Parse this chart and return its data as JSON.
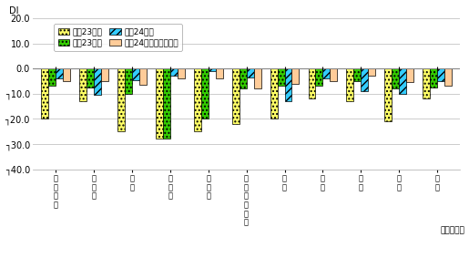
{
  "categories": [
    "全\n国\n平\n均",
    "北\n海\n道",
    "東\n北",
    "北\n関\n東",
    "南\n関\n東",
    "甲\n信\n越\n・\n北\n陸",
    "東\n海",
    "近\n畟",
    "中\n国",
    "四\n国",
    "九\n州"
  ],
  "series": {
    "h23_top": [
      -20.0,
      -13.0,
      -25.0,
      -28.0,
      -25.0,
      -22.0,
      -20.0,
      -12.0,
      -13.0,
      -21.0,
      -12.0
    ],
    "h23_bot": [
      -7.0,
      -7.5,
      -10.0,
      -28.0,
      -20.0,
      -8.0,
      -7.0,
      -7.0,
      -5.0,
      -8.0,
      -7.5
    ],
    "h24_top": [
      -4.0,
      -10.5,
      -4.5,
      -3.0,
      -1.0,
      -3.5,
      -13.0,
      -4.0,
      -9.0,
      -10.0,
      -5.0
    ],
    "h24_bot": [
      -5.0,
      -5.0,
      -6.5,
      -4.0,
      -4.0,
      -8.0,
      -6.0,
      -5.0,
      -3.0,
      -5.5,
      -7.0
    ]
  },
  "legend_labels": [
    "平成23年上",
    "平成23年下",
    "平成24年上",
    "平成24年下（見通し）"
  ],
  "colors": [
    "#ffff66",
    "#33cc00",
    "#33ccff",
    "#ffcc99"
  ],
  "hatches": [
    "....",
    "....",
    "////",
    ""
  ],
  "edgecolors": [
    "#888800",
    "#006600",
    "#006699",
    "#cc9966"
  ],
  "ylim": [
    -40,
    20
  ],
  "yticks": [
    20.0,
    10.0,
    0.0,
    -10.0,
    -20.0,
    -30.0,
    -40.0
  ],
  "ytick_labels": [
    "20.0",
    "10.0",
    "0.0",
    "┐10.0",
    "┐20.0",
    "┐30.0",
    "┐40.0"
  ],
  "ylabel": "DI",
  "xlabel": "（地域名）"
}
